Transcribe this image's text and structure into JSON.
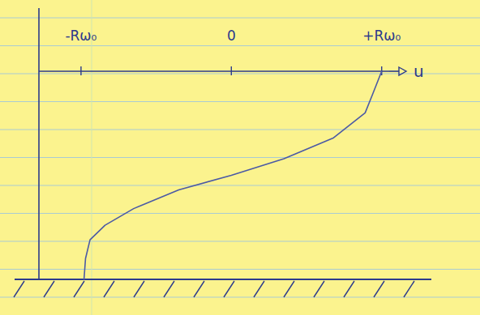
{
  "chart_data": {
    "type": "line",
    "x_label": "u",
    "x": [
      -0.98,
      -0.97,
      -0.94,
      -0.84,
      -0.65,
      -0.35,
      0.0,
      0.35,
      0.68,
      0.89,
      0.94,
      1.0
    ],
    "values": [
      0.0,
      0.1,
      0.19,
      0.26,
      0.34,
      0.43,
      0.5,
      0.58,
      0.68,
      0.8,
      0.89,
      1.0
    ],
    "color": "#4b5aa5",
    "xlim": [
      -1.28,
      1.05
    ],
    "ylim": [
      0,
      1
    ],
    "xticks": [
      {
        "value": -1,
        "label": "-Rω₀"
      },
      0,
      {
        "value": 1,
        "label": "+Rω₀"
      }
    ],
    "tick_labels": "x"
  }
}
